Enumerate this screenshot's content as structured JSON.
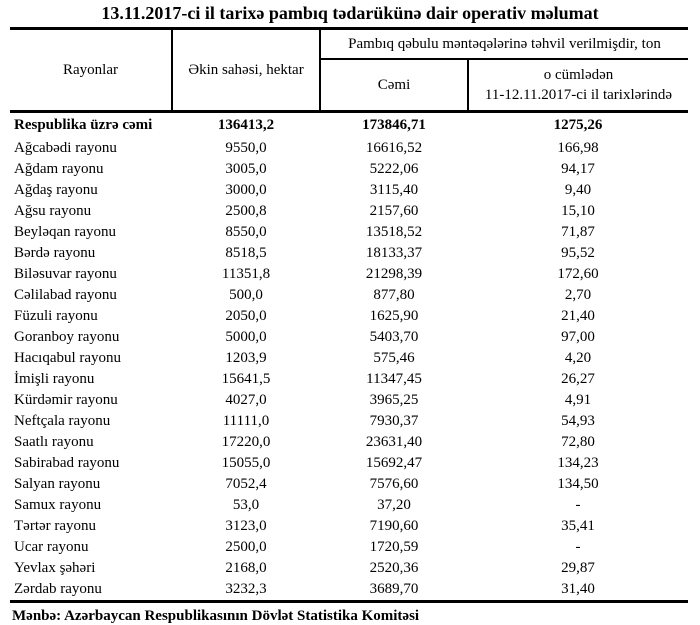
{
  "title": "13.11.2017-ci il tarixə pambıq tədarükünə dair operativ məlumat",
  "table": {
    "headers": {
      "rayonlar": "Rayonlar",
      "ekin_sahesi": "Əkin sahəsi, hektar",
      "tehvil_group": "Pambıq qəbulu məntəqələrinə təhvil verilmişdir, ton",
      "cemi": "Cəmi",
      "o_cumleden_line1": "o cümlədən",
      "o_cumleden_line2": "11-12.11.2017-ci il tarixlərində"
    },
    "total_row": {
      "name": "Respublika üzrə cəmi",
      "area": "136413,2",
      "total": "173846,71",
      "recent": "1275,26"
    },
    "rows": [
      {
        "name": "Ağcabədi rayonu",
        "area": "9550,0",
        "total": "16616,52",
        "recent": "166,98"
      },
      {
        "name": "Ağdam rayonu",
        "area": "3005,0",
        "total": "5222,06",
        "recent": "94,17"
      },
      {
        "name": "Ağdaş rayonu",
        "area": "3000,0",
        "total": "3115,40",
        "recent": "9,40"
      },
      {
        "name": "Ağsu rayonu",
        "area": "2500,8",
        "total": "2157,60",
        "recent": "15,10"
      },
      {
        "name": "Beyləqan rayonu",
        "area": "8550,0",
        "total": "13518,52",
        "recent": "71,87"
      },
      {
        "name": "Bərdə rayonu",
        "area": "8518,5",
        "total": "18133,37",
        "recent": "95,52"
      },
      {
        "name": "Biləsuvar rayonu",
        "area": "11351,8",
        "total": "21298,39",
        "recent": "172,60"
      },
      {
        "name": "Cəlilabad rayonu",
        "area": "500,0",
        "total": "877,80",
        "recent": "2,70"
      },
      {
        "name": "Füzuli rayonu",
        "area": "2050,0",
        "total": "1625,90",
        "recent": "21,40"
      },
      {
        "name": "Goranboy rayonu",
        "area": "5000,0",
        "total": "5403,70",
        "recent": "97,00"
      },
      {
        "name": "Hacıqabul rayonu",
        "area": "1203,9",
        "total": "575,46",
        "recent": "4,20"
      },
      {
        "name": "İmişli rayonu",
        "area": "15641,5",
        "total": "11347,45",
        "recent": "26,27"
      },
      {
        "name": "Kürdəmir rayonu",
        "area": "4027,0",
        "total": "3965,25",
        "recent": "4,91"
      },
      {
        "name": "Neftçala rayonu",
        "area": "11111,0",
        "total": "7930,37",
        "recent": "54,93"
      },
      {
        "name": "Saatlı rayonu",
        "area": "17220,0",
        "total": "23631,40",
        "recent": "72,80"
      },
      {
        "name": "Sabirabad rayonu",
        "area": "15055,0",
        "total": "15692,47",
        "recent": "134,23"
      },
      {
        "name": "Salyan rayonu",
        "area": "7052,4",
        "total": "7576,60",
        "recent": "134,50"
      },
      {
        "name": "Samux rayonu",
        "area": "53,0",
        "total": "37,20",
        "recent": "-"
      },
      {
        "name": "Tərtər rayonu",
        "area": "3123,0",
        "total": "7190,60",
        "recent": "35,41"
      },
      {
        "name": "Ucar rayonu",
        "area": "2500,0",
        "total": "1720,59",
        "recent": "-"
      },
      {
        "name": "Yevlax şəhəri",
        "area": "2168,0",
        "total": "2520,36",
        "recent": "29,87"
      },
      {
        "name": "Zərdab rayonu",
        "area": "3232,3",
        "total": "3689,70",
        "recent": "31,40"
      }
    ]
  },
  "footer": "Mənbə: Azərbaycan Respublikasının Dövlət Statistika Komitəsi"
}
